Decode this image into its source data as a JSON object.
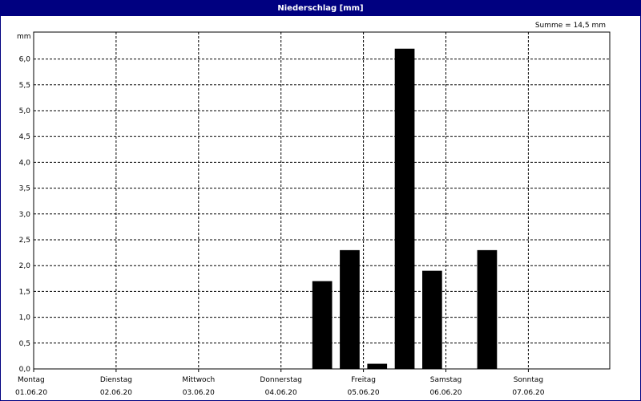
{
  "window": {
    "title": "Niederschlag [mm]"
  },
  "summary": {
    "label": "Summe = 14,5 mm"
  },
  "colors": {
    "titlebar": "#000080",
    "bar": "#000000",
    "grid": "#000000",
    "background": "#ffffff"
  },
  "chart_data": {
    "type": "bar",
    "title": "Niederschlag [mm]",
    "ylabel": "mm",
    "xlabel": "",
    "ylim": [
      0,
      6.5
    ],
    "y_ticks": [
      "0,0",
      "0,5",
      "1,0",
      "1,5",
      "2,0",
      "2,5",
      "3,0",
      "3,5",
      "4,0",
      "4,5",
      "5,0",
      "5,5",
      "6,0"
    ],
    "grid": "dashed",
    "x_ticks": [
      {
        "day": "Montag",
        "date": "01.06.20"
      },
      {
        "day": "Dienstag",
        "date": "02.06.20"
      },
      {
        "day": "Mittwoch",
        "date": "03.06.20"
      },
      {
        "day": "Donnerstag",
        "date": "04.06.20"
      },
      {
        "day": "Freitag",
        "date": "05.06.20"
      },
      {
        "day": "Samstag",
        "date": "06.06.20"
      },
      {
        "day": "Sonntag",
        "date": "07.06.20"
      }
    ],
    "interval_hours": 8,
    "bars": [
      {
        "start": "04.06.20 08:00",
        "value": 1.7
      },
      {
        "start": "04.06.20 16:00",
        "value": 2.3
      },
      {
        "start": "05.06.20 00:00",
        "value": 0.1
      },
      {
        "start": "05.06.20 08:00",
        "value": 6.2
      },
      {
        "start": "05.06.20 16:00",
        "value": 1.9
      },
      {
        "start": "06.06.20 08:00",
        "value": 2.3
      }
    ]
  }
}
